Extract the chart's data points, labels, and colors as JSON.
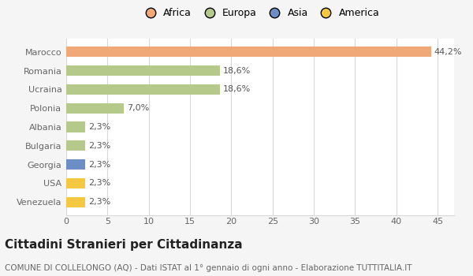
{
  "categories": [
    "Venezuela",
    "USA",
    "Georgia",
    "Bulgaria",
    "Albania",
    "Polonia",
    "Ucraina",
    "Romania",
    "Marocco"
  ],
  "values": [
    2.3,
    2.3,
    2.3,
    2.3,
    2.3,
    7.0,
    18.6,
    18.6,
    44.2
  ],
  "labels": [
    "2,3%",
    "2,3%",
    "2,3%",
    "2,3%",
    "2,3%",
    "7,0%",
    "18,6%",
    "18,6%",
    "44,2%"
  ],
  "colors": [
    "#f5c842",
    "#f5c842",
    "#6b8ec4",
    "#b5c98a",
    "#b5c98a",
    "#b5c98a",
    "#b5c98a",
    "#b5c98a",
    "#f0a878"
  ],
  "continent_colors": {
    "Africa": "#f0a878",
    "Europa": "#b5c98a",
    "Asia": "#6b8ec4",
    "America": "#f5c842"
  },
  "legend_labels": [
    "Africa",
    "Europa",
    "Asia",
    "America"
  ],
  "xlim": [
    0,
    47
  ],
  "xticks": [
    0,
    5,
    10,
    15,
    20,
    25,
    30,
    35,
    40,
    45
  ],
  "title": "Cittadini Stranieri per Cittadinanza",
  "subtitle": "COMUNE DI COLLELONGO (AQ) - Dati ISTAT al 1° gennaio di ogni anno - Elaborazione TUTTITALIA.IT",
  "background_color": "#f5f5f5",
  "plot_bg": "#ffffff",
  "grid_color": "#d8d8d8",
  "bar_height": 0.55,
  "label_fontsize": 8,
  "tick_fontsize": 8,
  "legend_fontsize": 9,
  "title_fontsize": 11,
  "subtitle_fontsize": 7.5
}
